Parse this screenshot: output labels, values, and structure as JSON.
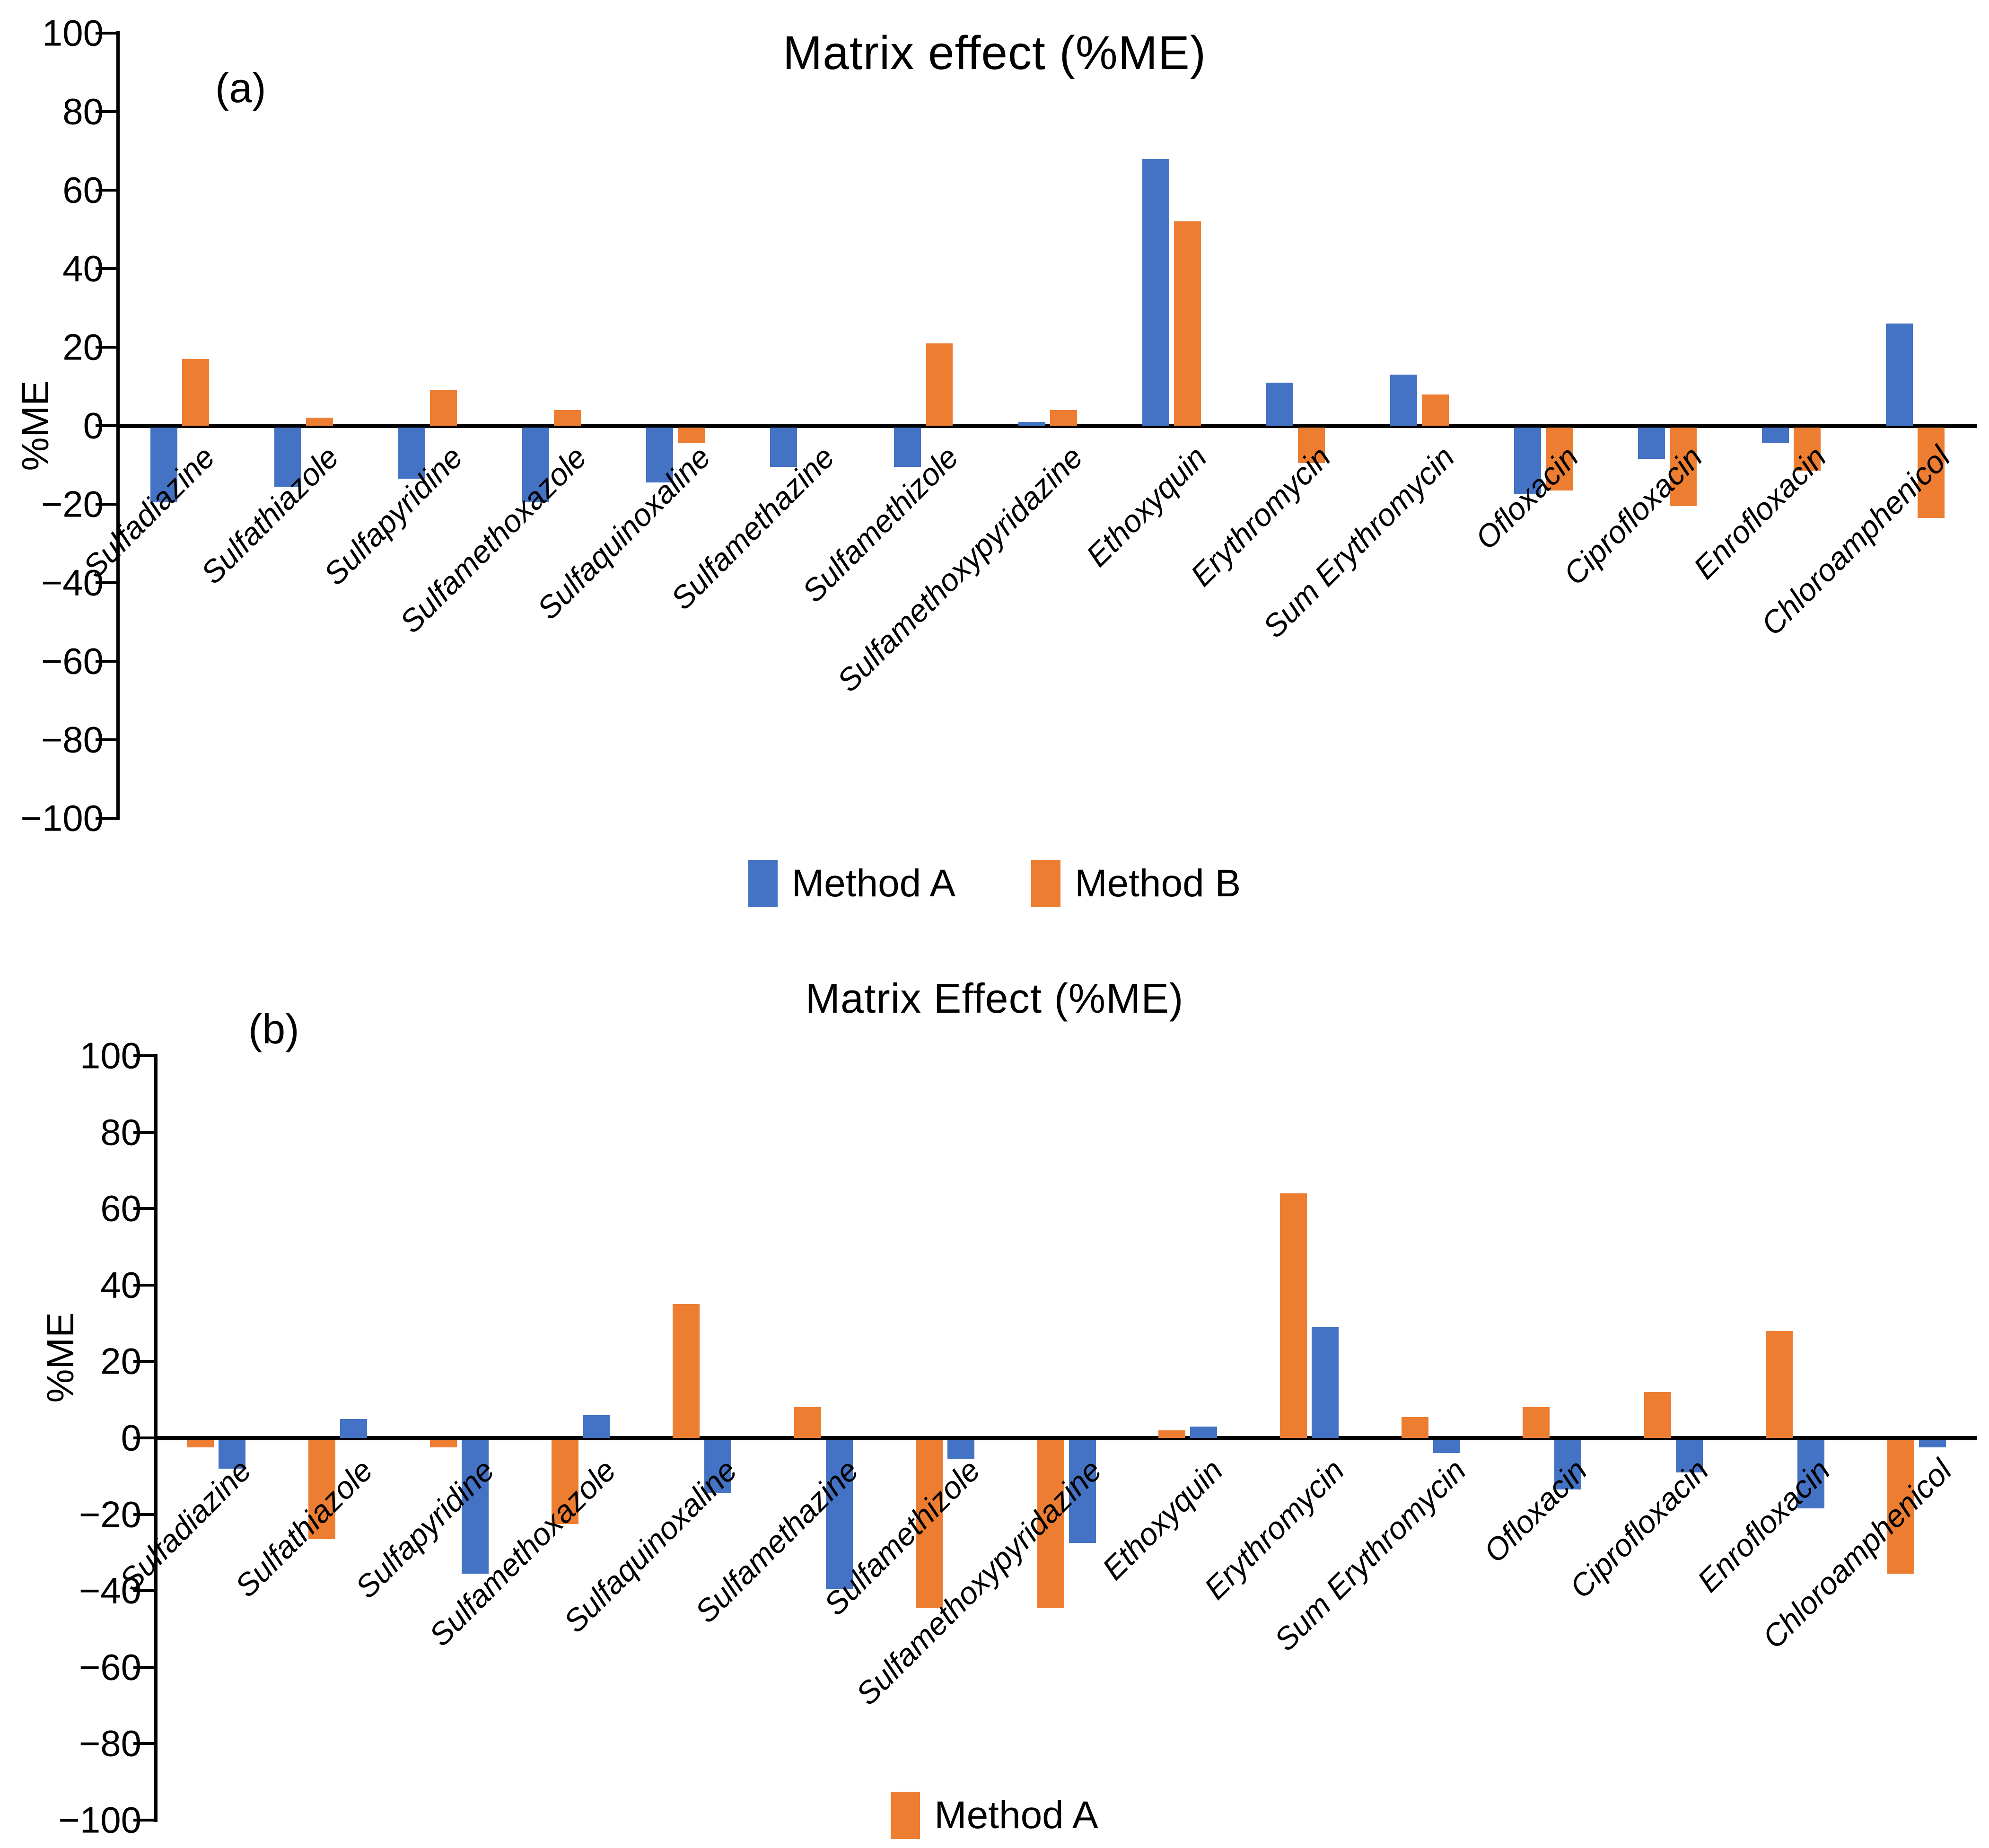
{
  "chart_data": [
    {
      "type": "bar",
      "panel_label": "(a)",
      "title": "Matrix effect (%ME)",
      "ylabel": "%ME",
      "ylim": [
        -100,
        100
      ],
      "ytick_step": 20,
      "ytick_labels": [
        "100",
        "80",
        "60",
        "40",
        "20",
        "0",
        "−20",
        "−40",
        "−60",
        "−80",
        "−100"
      ],
      "grid": false,
      "legend_position": "bottom",
      "categories": [
        "Sulfadiazine",
        "Sulfathiazole",
        "Sulfapyridine",
        "Sulfamethoxazole",
        "Sulfaquinoxaline",
        "Sulfamethazine",
        "Sulfamethizole",
        "Sulfamethoxypyridazine",
        "Ethoxyquin",
        "Erythromycin",
        "Sum Erythromycin",
        "Ofloxacin",
        "Ciprofloxacin",
        "Enrofloxacin",
        "Chloroamphenicol"
      ],
      "series": [
        {
          "name": "Method A",
          "color": "#4472C4",
          "in_legend": true,
          "values": [
            -19,
            -15,
            -13,
            -19,
            -14,
            -10,
            -10,
            1,
            68,
            11,
            13,
            -17,
            -8,
            -4,
            26
          ]
        },
        {
          "name": "Method B",
          "color": "#ED7D31",
          "in_legend": true,
          "values": [
            17,
            2,
            9,
            4,
            -4,
            0,
            21,
            4,
            52,
            -9,
            8,
            -16,
            -20,
            -11,
            -23
          ]
        }
      ]
    },
    {
      "type": "bar",
      "panel_label": "(b)",
      "title": "Matrix Effect (%ME)",
      "ylabel": "%ME",
      "ylim": [
        -100,
        100
      ],
      "ytick_step": 20,
      "ytick_labels": [
        "100",
        "80",
        "60",
        "40",
        "20",
        "0",
        "−20",
        "−40",
        "−60",
        "−80",
        "−100"
      ],
      "grid": false,
      "legend_position": "bottom",
      "categories": [
        "Sulfadiazine",
        "Sulfathiazole",
        "Sulfapyridine",
        "Sulfamethoxazole",
        "Sulfaquinoxaline",
        "Sulfamethazine",
        "Sulfamethizole",
        "Sulfamethoxypyridazine",
        "Ethoxyquin",
        "Erythromycin",
        "Sum Erythromycin",
        "Ofloxacin",
        "Ciprofloxacin",
        "Enrofloxacin",
        "Chloroamphenicol"
      ],
      "series": [
        {
          "name": "Method A",
          "color": "#ED7D31",
          "in_legend": true,
          "values": [
            -2,
            -26,
            -2,
            -22,
            35,
            8,
            -44,
            -44,
            2,
            64,
            5.5,
            8,
            12,
            28,
            -35
          ]
        },
        {
          "name": "",
          "color": "#4472C4",
          "in_legend": false,
          "values": [
            -7.5,
            5,
            -35,
            6,
            -14,
            -39,
            -5,
            -27,
            3,
            29,
            -3.5,
            -13,
            -8.5,
            -18,
            -2
          ]
        }
      ]
    }
  ]
}
